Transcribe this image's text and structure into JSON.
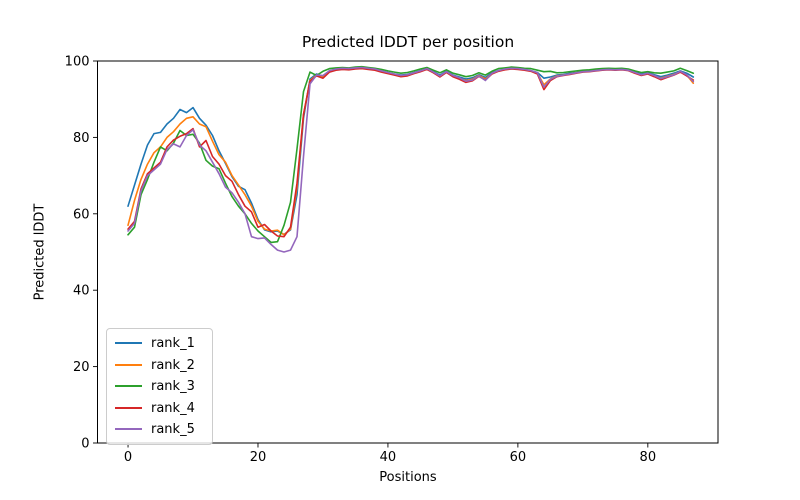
{
  "chart_data": {
    "type": "line",
    "title": "Predicted lDDT per position",
    "xlabel": "Positions",
    "ylabel": "Predicted lDDT",
    "x_description": "position index, one data point per position",
    "x_start": 0,
    "x_step": 1,
    "num_points": 88,
    "xlim": [
      -4.7,
      90.8
    ],
    "ylim": [
      0,
      100
    ],
    "xticks": [
      0,
      20,
      40,
      60,
      80
    ],
    "yticks": [
      0,
      20,
      40,
      60,
      80,
      100
    ],
    "grid": false,
    "legend_position": "lower left",
    "axis_color": "#000000",
    "background_color": "#ffffff",
    "series": [
      {
        "name": "rank_1",
        "color": "#1f77b4",
        "values": [
          62,
          67.5,
          73,
          78,
          81,
          81.3,
          83.5,
          85,
          87.3,
          86.5,
          87.8,
          85,
          83.2,
          80.5,
          76.5,
          73.2,
          69.7,
          67.2,
          66.3,
          62.8,
          58.5,
          55.8,
          55.3,
          55.5,
          54.6,
          55.8,
          65,
          85,
          95.3,
          96.6,
          96.0,
          97.4,
          97.8,
          98.0,
          97.9,
          98.1,
          98.2,
          98.0,
          97.9,
          97.4,
          97.0,
          96.6,
          96.3,
          96.5,
          97.0,
          97.5,
          98.0,
          97.2,
          96.3,
          97.3,
          96.3,
          95.8,
          95.3,
          95.6,
          96.4,
          95.7,
          96.9,
          97.5,
          97.9,
          98.1,
          98.0,
          97.8,
          97.5,
          97.0,
          95.5,
          95.8,
          96.3,
          96.5,
          96.8,
          97.0,
          97.3,
          97.4,
          97.6,
          97.8,
          97.9,
          97.8,
          97.9,
          97.7,
          97.1,
          96.6,
          96.9,
          96.4,
          95.9,
          96.3,
          96.8,
          97.4,
          96.8,
          95.8
        ]
      },
      {
        "name": "rank_2",
        "color": "#ff7f0e",
        "values": [
          57,
          63.5,
          69,
          73,
          76,
          77.5,
          80,
          81.5,
          83.5,
          85,
          85.4,
          83.5,
          82.8,
          79,
          75.5,
          73.5,
          70,
          67.5,
          65,
          62,
          58,
          56,
          55.5,
          55.7,
          54.5,
          56,
          67,
          86,
          94.9,
          96.3,
          95.7,
          97.2,
          97.7,
          97.9,
          97.8,
          98.0,
          98.1,
          97.9,
          97.7,
          97.2,
          96.8,
          96.4,
          96.1,
          96.3,
          96.8,
          97.3,
          97.9,
          97.0,
          96.0,
          97.1,
          96.1,
          95.5,
          94.9,
          95.2,
          96.2,
          95.3,
          96.7,
          97.4,
          97.8,
          98.0,
          97.9,
          97.7,
          97.4,
          96.8,
          93.8,
          95.3,
          96.1,
          96.3,
          96.6,
          96.9,
          97.2,
          97.3,
          97.5,
          97.7,
          97.8,
          97.7,
          97.8,
          97.6,
          96.9,
          96.3,
          96.7,
          96.1,
          95.5,
          96.0,
          96.5,
          97.2,
          96.3,
          94.2
        ]
      },
      {
        "name": "rank_3",
        "color": "#2ca02c",
        "values": [
          54.5,
          56.5,
          65,
          69,
          73.5,
          77.5,
          76.5,
          78.5,
          81.8,
          80.5,
          80.8,
          78.5,
          74,
          72.5,
          71.8,
          68,
          64.5,
          62,
          60,
          57.5,
          55.5,
          54,
          52.5,
          52.7,
          57,
          63,
          77,
          92,
          97.1,
          96.2,
          97.3,
          98.0,
          98.2,
          98.3,
          98.2,
          98.4,
          98.5,
          98.3,
          98.1,
          97.8,
          97.4,
          97.1,
          96.8,
          97.0,
          97.4,
          97.9,
          98.3,
          97.6,
          96.9,
          97.7,
          96.8,
          96.4,
          95.9,
          96.2,
          96.9,
          96.3,
          97.3,
          98.0,
          98.2,
          98.4,
          98.3,
          98.1,
          98.0,
          97.6,
          97.2,
          97.3,
          96.9,
          97.0,
          97.2,
          97.4,
          97.6,
          97.7,
          97.9,
          98.0,
          98.1,
          98.0,
          98.1,
          97.9,
          97.4,
          97.0,
          97.2,
          96.9,
          96.8,
          97.1,
          97.4,
          98.1,
          97.5,
          96.8
        ]
      },
      {
        "name": "rank_4",
        "color": "#d62728",
        "values": [
          56,
          58,
          66.5,
          70.5,
          72,
          73.5,
          77.5,
          79.3,
          80.3,
          81,
          82.3,
          77.5,
          79.2,
          75,
          73,
          70,
          68.5,
          65,
          62,
          60.5,
          56.5,
          57.2,
          55.5,
          54.2,
          54,
          56.5,
          68,
          86,
          94.7,
          96.1,
          95.5,
          97.1,
          97.6,
          97.8,
          97.7,
          97.9,
          98.0,
          97.8,
          97.6,
          97.1,
          96.7,
          96.3,
          95.9,
          96.1,
          96.7,
          97.2,
          97.8,
          96.9,
          95.8,
          97.0,
          95.9,
          95.2,
          94.4,
          94.8,
          96.0,
          95.0,
          96.6,
          97.3,
          97.7,
          97.9,
          97.8,
          97.6,
          97.3,
          96.6,
          92.5,
          94.9,
          95.9,
          96.2,
          96.5,
          96.8,
          97.1,
          97.2,
          97.4,
          97.6,
          97.7,
          97.6,
          97.7,
          97.5,
          96.8,
          96.2,
          96.6,
          95.9,
          95.1,
          95.7,
          96.3,
          97.1,
          96.1,
          95.0
        ]
      },
      {
        "name": "rank_5",
        "color": "#9467bd",
        "values": [
          55.5,
          57.5,
          66,
          70,
          71.5,
          73,
          76.8,
          78.3,
          77.5,
          80.5,
          82,
          78,
          76.5,
          73.5,
          70.5,
          67,
          65.5,
          63,
          60,
          54,
          53.5,
          53.7,
          52,
          50.5,
          50,
          50.5,
          54,
          75,
          94.0,
          96.3,
          96.2,
          97.5,
          97.9,
          98.1,
          98.0,
          98.2,
          98.3,
          98.1,
          97.9,
          97.4,
          97.0,
          96.6,
          96.2,
          96.4,
          96.9,
          97.4,
          98.0,
          97.1,
          96.1,
          97.2,
          96.2,
          95.6,
          94.7,
          95.0,
          96.1,
          94.9,
          96.8,
          97.5,
          97.9,
          98.1,
          98.0,
          97.8,
          97.5,
          96.9,
          93.2,
          95.2,
          96.0,
          96.3,
          96.6,
          96.9,
          97.2,
          97.3,
          97.5,
          97.7,
          97.8,
          97.7,
          97.8,
          97.6,
          97.0,
          96.4,
          96.8,
          96.2,
          95.4,
          95.9,
          96.4,
          97.3,
          96.4,
          94.6
        ]
      }
    ]
  }
}
